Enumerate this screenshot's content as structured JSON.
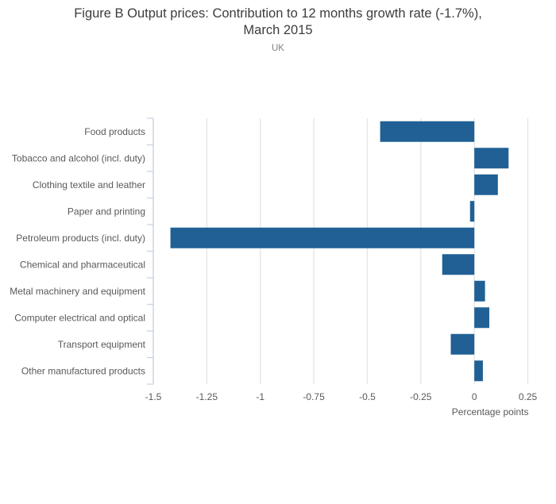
{
  "title": {
    "line1": "Figure B Output prices: Contribution to 12 months growth rate (-1.7%),",
    "line2": "March 2015",
    "subtitle": "UK"
  },
  "chart_data": {
    "type": "bar",
    "orientation": "horizontal",
    "title": "Figure B Output prices: Contribution to 12 months growth rate (-1.7%), March 2015",
    "subtitle": "UK",
    "categories": [
      "Food products",
      "Tobacco and alcohol (incl. duty)",
      "Clothing textile and leather",
      "Paper and printing",
      "Petroleum products (incl. duty)",
      "Chemical and pharmaceutical",
      "Metal machinery and equipment",
      "Computer electrical and optical",
      "Transport equipment",
      "Other manufactured products"
    ],
    "values": [
      -0.44,
      0.16,
      0.11,
      -0.02,
      -1.42,
      -0.15,
      0.05,
      0.07,
      -0.11,
      0.04
    ],
    "xlabel": "Percentage points",
    "ylabel": "",
    "xlim": [
      -1.5,
      0.3
    ],
    "xticks": [
      -1.5,
      -1.25,
      -1,
      -0.75,
      -0.5,
      -0.25,
      0,
      0.25
    ],
    "xtick_labels": [
      "-1.5",
      "-1.25",
      "-1",
      "-0.75",
      "-0.5",
      "-0.25",
      "0",
      "0.25"
    ],
    "grid": true,
    "legend": "none",
    "colors": {
      "bar": "#206095",
      "gridline": "#e4e4e4",
      "axis_line": "#c8d4e3",
      "tick_text": "#595959",
      "axis_title_text": "#595959"
    }
  }
}
